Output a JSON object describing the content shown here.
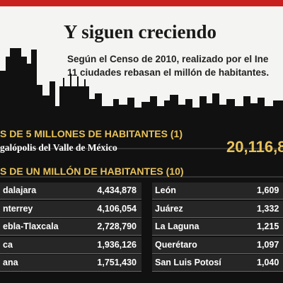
{
  "header": {
    "title": "Y siguen creciendo",
    "subtitle_lines": [
      "Según el Censo de 2010, realizado por el Ine",
      "11 ciudades rebasan el millón de habitantes."
    ]
  },
  "section_1": {
    "heading": "S DE 5 MILLONES DE HABITANTES (1)",
    "city": "galópolis del Valle de México",
    "population": "20,116,8"
  },
  "section_2": {
    "heading": "S DE UN MILLÓN DE HABITANTES (10)",
    "left": [
      [
        "dalajara",
        "4,434,878"
      ],
      [
        "nterrey",
        "4,106,054"
      ],
      [
        "ebla-Tlaxcala",
        "2,728,790"
      ],
      [
        "ca",
        "1,936,126"
      ],
      [
        "ana",
        "1,751,430"
      ]
    ],
    "right": [
      [
        "León",
        "1,609"
      ],
      [
        "Juárez",
        "1,332"
      ],
      [
        "La Laguna",
        "1,215"
      ],
      [
        "Querétaro",
        "1,097"
      ],
      [
        "San Luis Potosí",
        "1,040"
      ]
    ]
  }
}
